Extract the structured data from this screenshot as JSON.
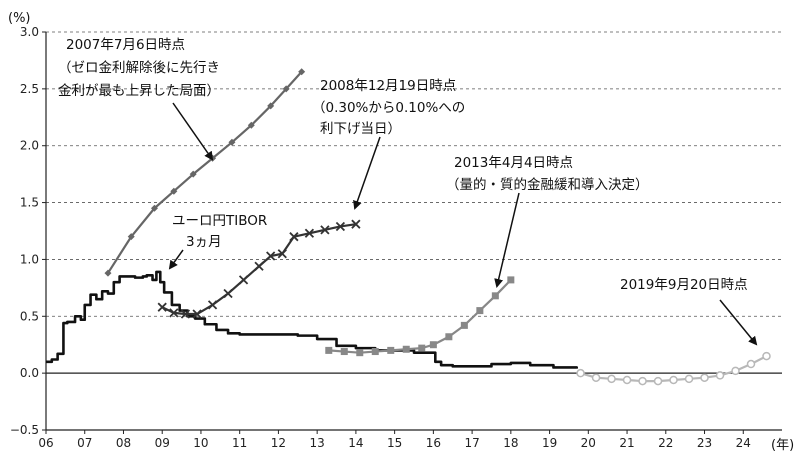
{
  "chart_data": {
    "type": "line",
    "y_unit": "(%)",
    "x_unit": "(年)",
    "xlim": [
      2006,
      2025
    ],
    "ylim": [
      -0.5,
      3.0
    ],
    "y_ticks": [
      -0.5,
      0.0,
      0.5,
      1.0,
      1.5,
      2.0,
      2.5,
      3.0
    ],
    "y_tick_labels": [
      "−0.5",
      "0.0",
      "0.5",
      "1.0",
      "1.5",
      "2.0",
      "2.5",
      "3.0"
    ],
    "x_ticks": [
      2006,
      2007,
      2008,
      2009,
      2010,
      2011,
      2012,
      2013,
      2014,
      2015,
      2016,
      2017,
      2018,
      2019,
      2020,
      2021,
      2022,
      2023,
      2024
    ],
    "x_tick_labels": [
      "06",
      "07",
      "08",
      "09",
      "10",
      "11",
      "12",
      "13",
      "14",
      "15",
      "16",
      "17",
      "18",
      "19",
      "20",
      "21",
      "22",
      "23",
      "24"
    ],
    "grid": "horizontal-dashed",
    "series": [
      {
        "name": "ユーロ円TIBOR 3ヵ月",
        "color": "#111111",
        "marker": "none",
        "x": [
          2006.0,
          2006.15,
          2006.3,
          2006.45,
          2006.55,
          2006.75,
          2006.9,
          2007.0,
          2007.15,
          2007.3,
          2007.45,
          2007.6,
          2007.75,
          2007.9,
          2008.1,
          2008.3,
          2008.5,
          2008.6,
          2008.75,
          2008.85,
          2008.95,
          2009.05,
          2009.25,
          2009.45,
          2009.65,
          2009.85,
          2010.1,
          2010.4,
          2010.7,
          2011.0,
          2011.5,
          2012.0,
          2012.5,
          2013.0,
          2013.5,
          2014.0,
          2014.5,
          2015.0,
          2015.5,
          2015.9,
          2016.05,
          2016.2,
          2016.5,
          2017.0,
          2017.5,
          2018.0,
          2018.5,
          2018.9,
          2019.1,
          2019.4,
          2019.7
        ],
        "values": [
          0.1,
          0.12,
          0.17,
          0.44,
          0.45,
          0.5,
          0.47,
          0.6,
          0.69,
          0.65,
          0.72,
          0.7,
          0.8,
          0.85,
          0.85,
          0.84,
          0.85,
          0.86,
          0.82,
          0.89,
          0.8,
          0.71,
          0.6,
          0.55,
          0.5,
          0.48,
          0.43,
          0.38,
          0.35,
          0.34,
          0.34,
          0.34,
          0.33,
          0.3,
          0.24,
          0.22,
          0.2,
          0.2,
          0.18,
          0.18,
          0.1,
          0.07,
          0.06,
          0.06,
          0.08,
          0.09,
          0.07,
          0.07,
          0.05,
          0.05,
          0.04
        ]
      },
      {
        "name": "2007年7月6日時点",
        "color": "#666666",
        "marker": "diamond",
        "x": [
          2007.6,
          2008.2,
          2008.8,
          2009.3,
          2009.8,
          2010.3,
          2010.8,
          2011.3,
          2011.8,
          2012.2,
          2012.6
        ],
        "values": [
          0.88,
          1.2,
          1.45,
          1.6,
          1.75,
          1.89,
          2.03,
          2.18,
          2.35,
          2.5,
          2.65
        ]
      },
      {
        "name": "2008年12月19日時点",
        "color": "#333333",
        "marker": "x",
        "x": [
          2009.0,
          2009.3,
          2009.6,
          2009.9,
          2010.3,
          2010.7,
          2011.1,
          2011.5,
          2011.8,
          2012.1,
          2012.4,
          2012.8,
          2013.2,
          2013.6,
          2014.0
        ],
        "values": [
          0.58,
          0.53,
          0.52,
          0.52,
          0.6,
          0.7,
          0.82,
          0.94,
          1.03,
          1.05,
          1.2,
          1.23,
          1.26,
          1.29,
          1.31
        ]
      },
      {
        "name": "2013年4月4日時点",
        "color": "#888888",
        "marker": "square",
        "x": [
          2013.3,
          2013.7,
          2014.1,
          2014.5,
          2014.9,
          2015.3,
          2015.7,
          2016.0,
          2016.4,
          2016.8,
          2017.2,
          2017.6,
          2018.0
        ],
        "values": [
          0.2,
          0.19,
          0.18,
          0.19,
          0.2,
          0.21,
          0.22,
          0.25,
          0.32,
          0.42,
          0.55,
          0.68,
          0.82
        ]
      },
      {
        "name": "2019年9月20日時点",
        "color": "#b8b8b8",
        "marker": "circle",
        "x": [
          2019.8,
          2020.2,
          2020.6,
          2021.0,
          2021.4,
          2021.8,
          2022.2,
          2022.6,
          2023.0,
          2023.4,
          2023.8,
          2024.2,
          2024.6
        ],
        "values": [
          0.0,
          -0.04,
          -0.05,
          -0.06,
          -0.07,
          -0.07,
          -0.06,
          -0.05,
          -0.04,
          -0.02,
          0.02,
          0.08,
          0.15
        ]
      }
    ],
    "annotations": [
      {
        "lines": [
          "2007年7月6日時点",
          "（ゼロ金利解除後に先行き",
          "金利が最も上昇した局面）"
        ]
      },
      {
        "lines": [
          "2008年12月19日時点",
          "（0.30%から0.10%への",
          "利下げ当日）"
        ]
      },
      {
        "lines": [
          "2013年4月4日時点",
          "（量的・質的金融緩和導入決定）"
        ]
      },
      {
        "lines": [
          "2019年9月20日時点"
        ]
      },
      {
        "lines": [
          "ユーロ円TIBOR",
          "3ヵ月"
        ]
      }
    ]
  }
}
